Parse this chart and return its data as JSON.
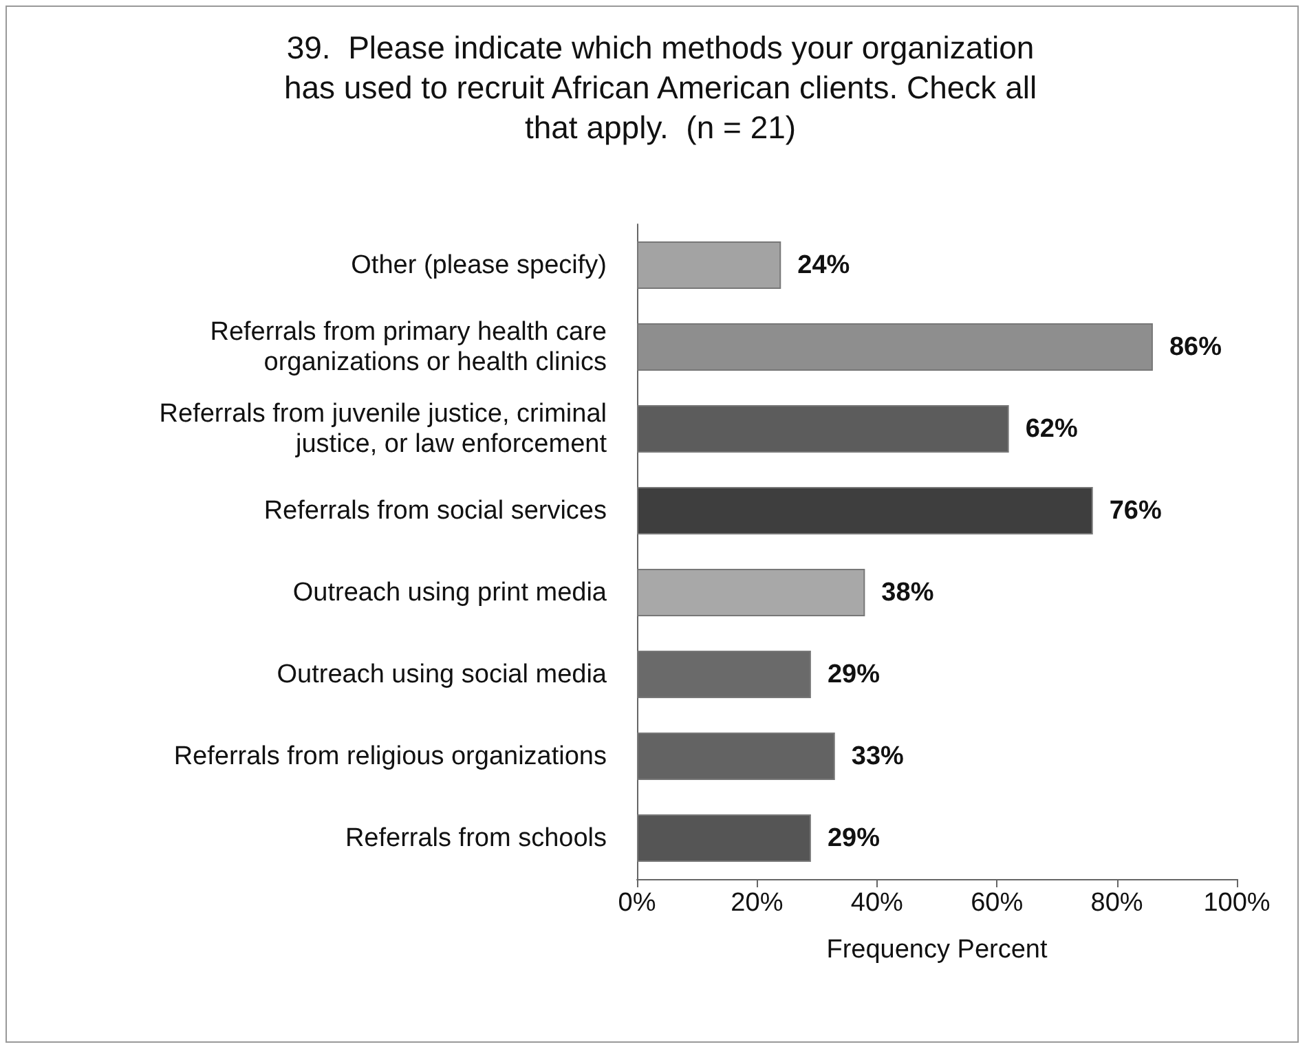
{
  "chart_data": {
    "type": "bar",
    "orientation": "horizontal",
    "title": "39.  Please indicate which methods your organization\nhas used to recruit African American clients. Check all\nthat apply.  (n = 21)",
    "xlabel": "Frequency Percent",
    "categories": [
      "Other (please specify)",
      "Referrals from primary health care\norganizations or health clinics",
      "Referrals from juvenile justice, criminal\njustice, or law enforcement",
      "Referrals from social services",
      "Outreach using print media",
      "Outreach using social media",
      "Referrals from religious organizations",
      "Referrals from schools"
    ],
    "values": [
      24,
      86,
      62,
      76,
      38,
      29,
      33,
      29
    ],
    "colors": [
      "#a3a3a3",
      "#8e8e8e",
      "#5c5c5c",
      "#3e3e3e",
      "#a8a8a8",
      "#6a6a6a",
      "#636363",
      "#555555"
    ],
    "value_labels": [
      "24%",
      "86%",
      "62%",
      "76%",
      "38%",
      "29%",
      "33%",
      "29%"
    ],
    "xlim": [
      0,
      100
    ],
    "xticks": [
      {
        "value": 0,
        "label": "0%"
      },
      {
        "value": 20,
        "label": "20%"
      },
      {
        "value": 40,
        "label": "40%"
      },
      {
        "value": 60,
        "label": "60%"
      },
      {
        "value": 80,
        "label": "80%"
      },
      {
        "value": 100,
        "label": "100%"
      }
    ],
    "grid": false
  }
}
